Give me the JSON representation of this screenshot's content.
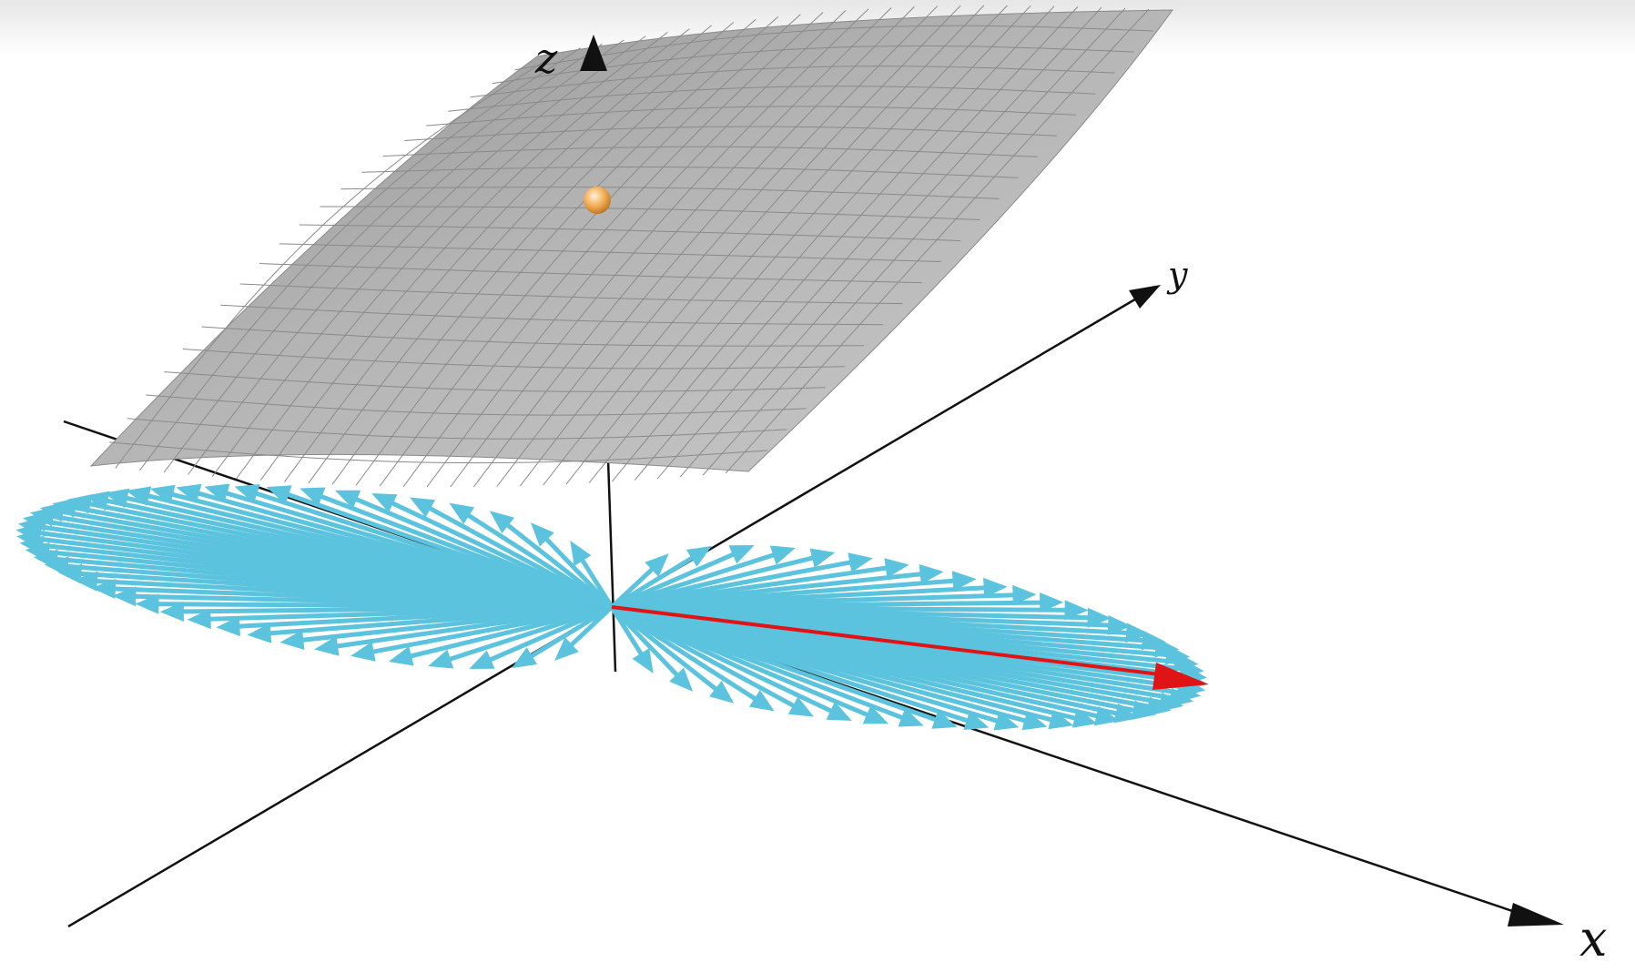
{
  "diagram": {
    "axes": {
      "x_label": "x",
      "y_label": "y",
      "z_label": "z"
    },
    "colors": {
      "background": "#ffffff",
      "top_fade": "#e9e9e9",
      "surface_fill": "#a6a6a6",
      "surface_grid": "#8a8a8a",
      "vector_fan": "#5bc3dd",
      "highlight_vector": "#e01414",
      "point_marker": "#f3b15a",
      "axis": "#111111"
    },
    "elements": {
      "surface": "shaded-surface-grid",
      "point": "point-on-surface",
      "fan": "unit-vector-fan",
      "highlight": "highlighted-direction-vector"
    }
  }
}
